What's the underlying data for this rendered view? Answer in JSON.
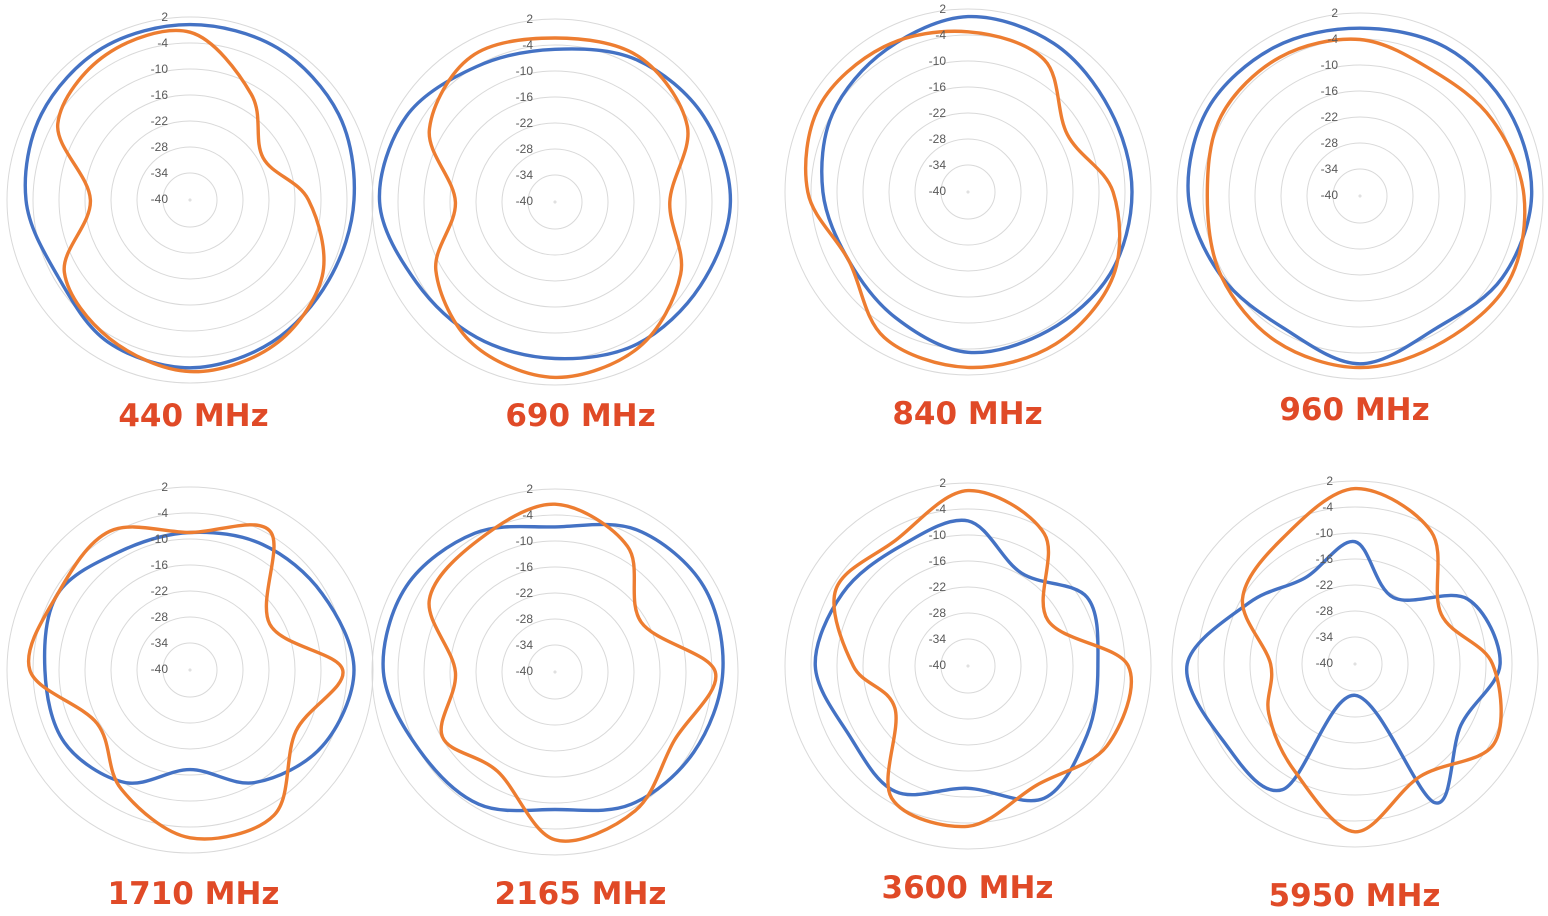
{
  "chart_data": [
    {
      "type": "line",
      "subtype": "polar",
      "title": "440 MHz",
      "radial_ticks": [
        "2",
        "-4",
        "-10",
        "-16",
        "-22",
        "-28",
        "-34",
        "-40"
      ],
      "rlim": [
        -46,
        2
      ],
      "grid": true,
      "series": [
        {
          "color": "#4472c4",
          "angles_deg": [
            0,
            30,
            60,
            90,
            120,
            150,
            180,
            210,
            240,
            270,
            300,
            330
          ],
          "values": [
            0,
            0,
            -1,
            -3,
            -4,
            -3,
            -2,
            -3,
            -6,
            -3,
            -1,
            0
          ]
        },
        {
          "color": "#ed7d31",
          "angles_deg": [
            0,
            30,
            60,
            90,
            120,
            150,
            180,
            210,
            240,
            270,
            300,
            330
          ],
          "values": [
            -2,
            -14,
            -24,
            -15,
            -6,
            -2,
            -1,
            -4,
            -8,
            -20,
            -6,
            -2
          ]
        }
      ]
    },
    {
      "type": "line",
      "subtype": "polar",
      "title": "690 MHz",
      "radial_ticks": [
        "2",
        "-4",
        "-10",
        "-16",
        "-22",
        "-28",
        "-34",
        "-40"
      ],
      "rlim": [
        -46,
        2
      ],
      "grid": true,
      "series": [
        {
          "color": "#4472c4",
          "angles_deg": [
            0,
            30,
            60,
            90,
            120,
            150,
            180,
            210,
            240,
            270,
            300,
            330
          ],
          "values": [
            -6,
            -3,
            -1,
            0,
            -2,
            -3,
            -5,
            -5,
            -4,
            0,
            -1,
            -5
          ]
        },
        {
          "color": "#ed7d31",
          "angles_deg": [
            0,
            30,
            60,
            90,
            120,
            150,
            180,
            210,
            240,
            270,
            300,
            330
          ],
          "values": [
            -3,
            -2,
            -6,
            -16,
            -8,
            -2,
            0,
            -3,
            -10,
            -20,
            -8,
            -2
          ]
        }
      ]
    },
    {
      "type": "line",
      "subtype": "polar",
      "title": "840 MHz",
      "radial_ticks": [
        "2",
        "-4",
        "-10",
        "-16",
        "-22",
        "-28",
        "-34",
        "-40"
      ],
      "rlim": [
        -46,
        2
      ],
      "grid": true,
      "series": [
        {
          "color": "#4472c4",
          "angles_deg": [
            0,
            30,
            60,
            90,
            120,
            150,
            180,
            210,
            240,
            270,
            300,
            330
          ],
          "values": [
            0,
            -1,
            -3,
            -3,
            -3,
            -4,
            -4,
            -8,
            -10,
            -8,
            -5,
            -3
          ]
        },
        {
          "color": "#ed7d31",
          "angles_deg": [
            0,
            30,
            60,
            90,
            120,
            150,
            180,
            210,
            240,
            270,
            300,
            330
          ],
          "values": [
            -4,
            -6,
            -16,
            -8,
            -2,
            0,
            0,
            -2,
            -10,
            -4,
            -1,
            -2
          ]
        }
      ]
    },
    {
      "type": "line",
      "subtype": "polar",
      "title": "960 MHz",
      "radial_ticks": [
        "2",
        "-4",
        "-10",
        "-16",
        "-22",
        "-28",
        "-34",
        "-40"
      ],
      "rlim": [
        -46,
        2
      ],
      "grid": true,
      "series": [
        {
          "color": "#4472c4",
          "angles_deg": [
            0,
            30,
            60,
            90,
            120,
            150,
            180,
            210,
            240,
            270,
            300,
            330
          ],
          "values": [
            -2,
            -1,
            -1,
            -1,
            -3,
            -6,
            -2,
            -6,
            -4,
            -1,
            0,
            -1
          ]
        },
        {
          "color": "#ed7d31",
          "angles_deg": [
            0,
            30,
            60,
            90,
            120,
            150,
            180,
            210,
            240,
            270,
            300,
            330
          ],
          "values": [
            -5,
            -8,
            -6,
            -3,
            -1,
            -2,
            -1,
            -2,
            -4,
            -6,
            -4,
            -4
          ]
        }
      ]
    },
    {
      "type": "line",
      "subtype": "polar",
      "title": "1710 MHz",
      "radial_ticks": [
        "2",
        "-4",
        "-10",
        "-16",
        "-22",
        "-28",
        "-34",
        "-40"
      ],
      "rlim": [
        -46,
        2
      ],
      "grid": true,
      "series": [
        {
          "color": "#4472c4",
          "angles_deg": [
            0,
            30,
            60,
            90,
            120,
            150,
            180,
            210,
            240,
            270,
            300,
            330
          ],
          "values": [
            -10,
            -8,
            -6,
            -3,
            -6,
            -12,
            -20,
            -12,
            -8,
            -8,
            -6,
            -10
          ]
        },
        {
          "color": "#ed7d31",
          "angles_deg": [
            0,
            30,
            60,
            90,
            120,
            150,
            180,
            210,
            240,
            270,
            300,
            330
          ],
          "values": [
            -10,
            -4,
            -22,
            -6,
            -14,
            -2,
            -2,
            -10,
            -18,
            -4,
            -6,
            -4
          ]
        }
      ]
    },
    {
      "type": "line",
      "subtype": "polar",
      "title": "2165 MHz",
      "radial_ticks": [
        "2",
        "-4",
        "-10",
        "-16",
        "-22",
        "-28",
        "-34",
        "-40"
      ],
      "rlim": [
        -46,
        2
      ],
      "grid": true,
      "series": [
        {
          "color": "#4472c4",
          "angles_deg": [
            0,
            30,
            60,
            90,
            120,
            150,
            180,
            210,
            240,
            270,
            300,
            330
          ],
          "values": [
            -8,
            -3,
            -1,
            -2,
            -4,
            -6,
            -10,
            -6,
            -5,
            -1,
            -1,
            -4
          ]
        },
        {
          "color": "#ed7d31",
          "angles_deg": [
            0,
            30,
            60,
            90,
            120,
            150,
            180,
            210,
            240,
            270,
            300,
            330
          ],
          "values": [
            -2,
            -8,
            -20,
            -4,
            -10,
            -4,
            -2,
            -16,
            -12,
            -20,
            -8,
            -6
          ]
        }
      ]
    },
    {
      "type": "line",
      "subtype": "polar",
      "title": "3600 MHz",
      "radial_ticks": [
        "2",
        "-4",
        "-10",
        "-16",
        "-22",
        "-28",
        "-34",
        "-40"
      ],
      "rlim": [
        -46,
        2
      ],
      "grid": true,
      "series": [
        {
          "color": "#4472c4",
          "angles_deg": [
            0,
            30,
            60,
            90,
            120,
            150,
            180,
            210,
            240,
            270,
            300,
            330
          ],
          "values": [
            -8,
            -18,
            -10,
            -12,
            -10,
            -6,
            -14,
            -8,
            -10,
            -6,
            -8,
            -10
          ]
        },
        {
          "color": "#ed7d31",
          "angles_deg": [
            0,
            30,
            60,
            90,
            120,
            150,
            180,
            210,
            240,
            270,
            300,
            330
          ],
          "values": [
            0,
            -6,
            -22,
            -4,
            -4,
            -10,
            -4,
            -6,
            -24,
            -16,
            -6,
            -8
          ]
        }
      ]
    },
    {
      "type": "line",
      "subtype": "polar",
      "title": "5950 MHz",
      "radial_ticks": [
        "2",
        "-4",
        "-10",
        "-16",
        "-22",
        "-28",
        "-34",
        "-40"
      ],
      "rlim": [
        -46,
        2
      ],
      "grid": true,
      "series": [
        {
          "color": "#4472c4",
          "angles_deg": [
            0,
            30,
            60,
            90,
            120,
            150,
            180,
            210,
            240,
            270,
            300,
            330
          ],
          "values": [
            -14,
            -26,
            -12,
            -8,
            -14,
            -4,
            -38,
            -8,
            -6,
            -2,
            -14,
            -20
          ]
        },
        {
          "color": "#ed7d31",
          "angles_deg": [
            0,
            30,
            60,
            90,
            120,
            150,
            180,
            210,
            240,
            270,
            300,
            330
          ],
          "values": [
            0,
            -6,
            -20,
            -10,
            -4,
            -12,
            -2,
            -14,
            -20,
            -24,
            -12,
            -8
          ]
        }
      ]
    }
  ]
}
